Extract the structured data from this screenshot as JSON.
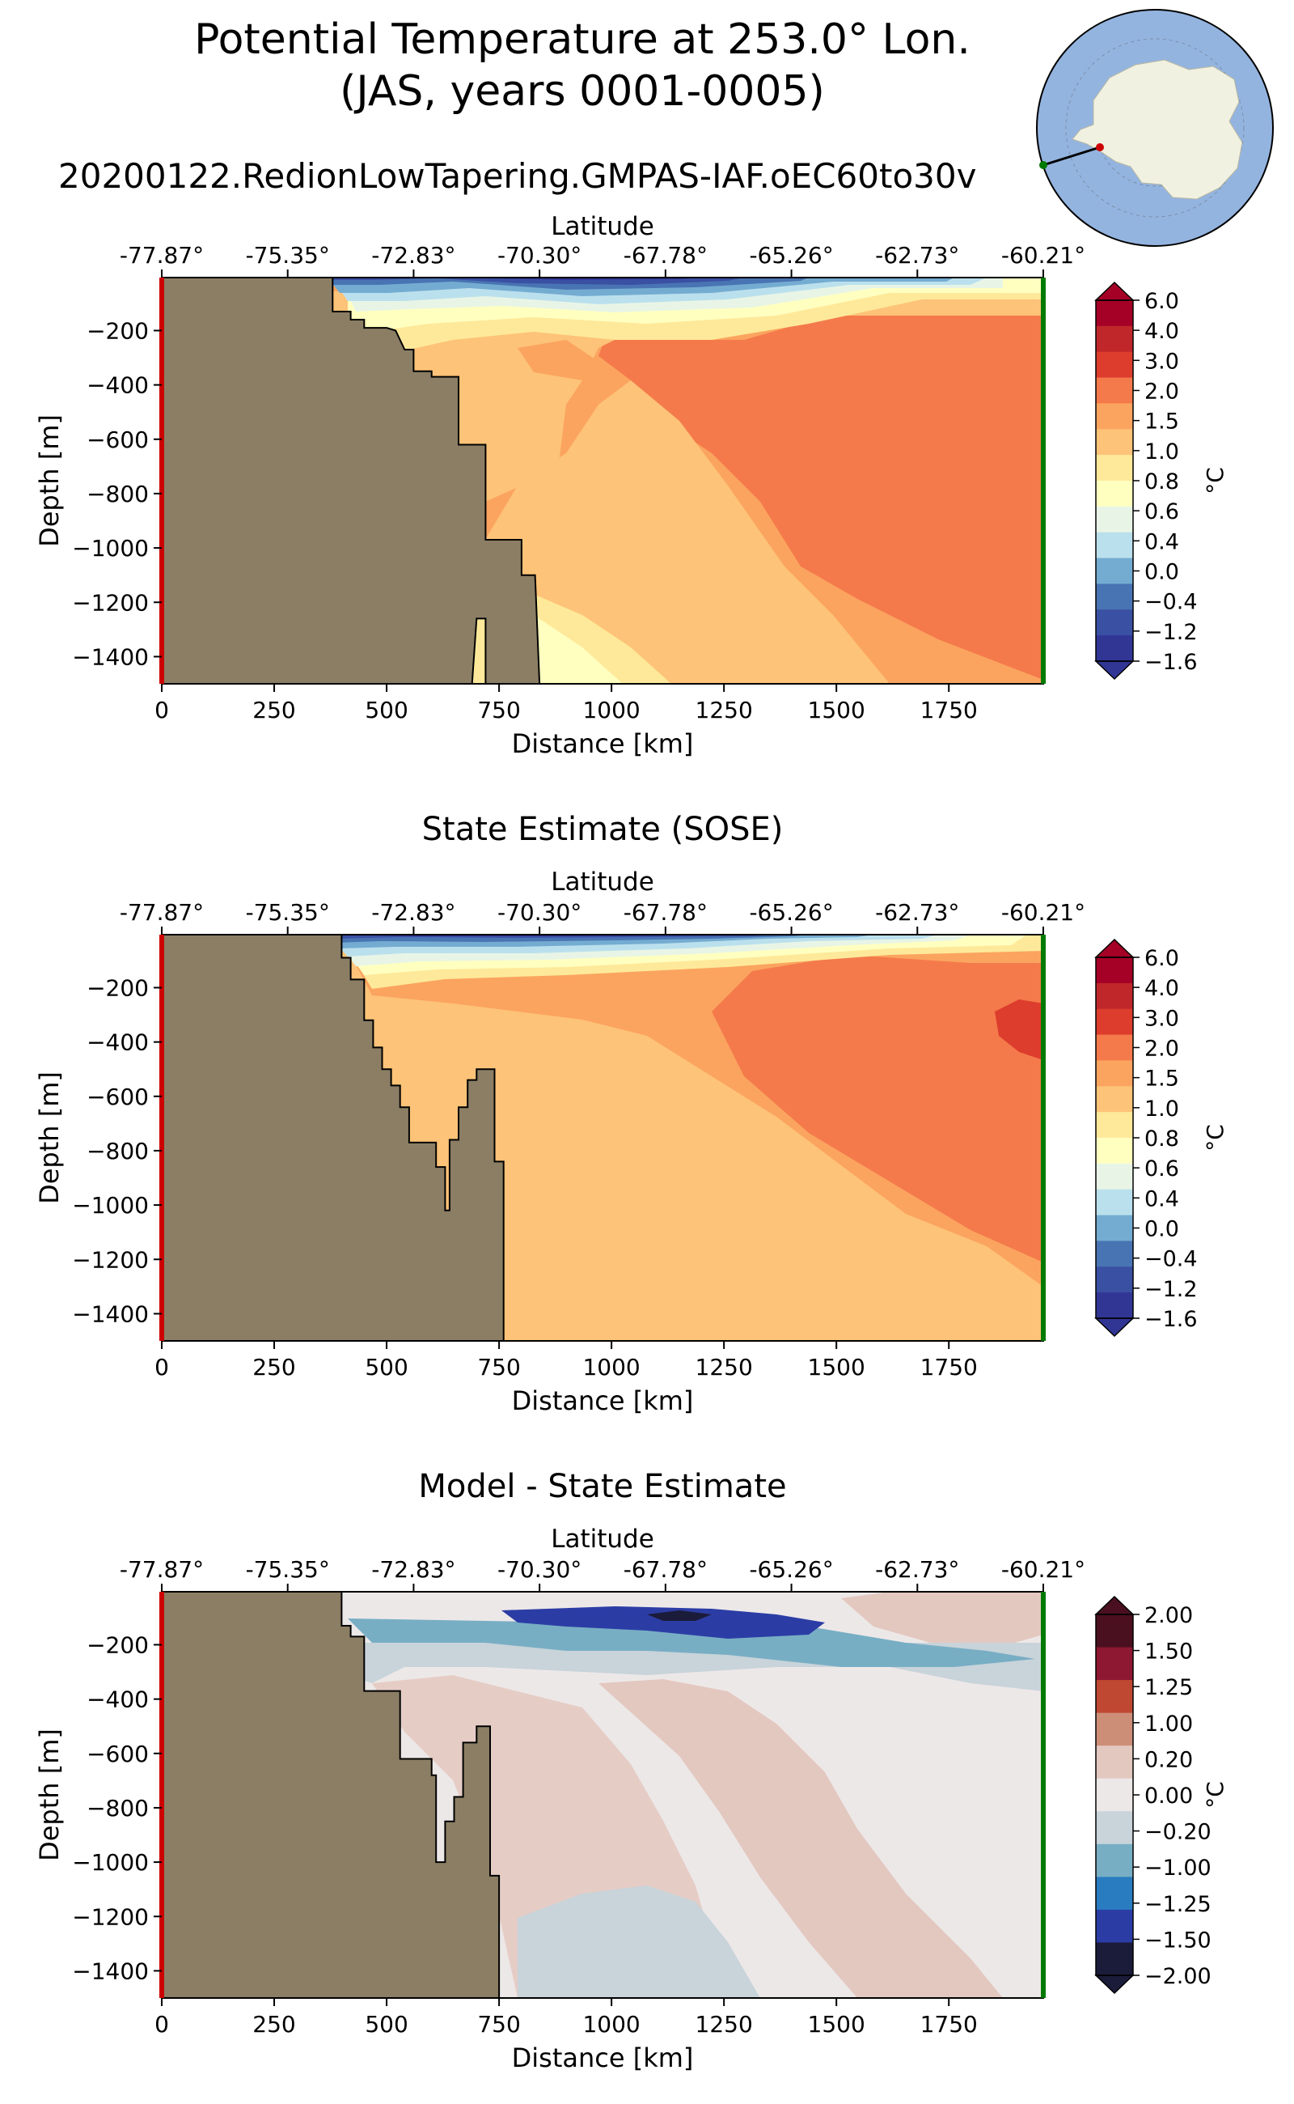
{
  "header": {
    "title_line1": "Potential Temperature at 253.0° Lon.",
    "title_line2": "(JAS, years 0001-0005)",
    "run_name": "20200122.RedionLowTapering.GMPAS-IAF.oEC60to30v"
  },
  "colors": {
    "land": "#8b7e64",
    "start_marker": "#cc0000",
    "end_marker": "#006400",
    "map_ocean": "#94b4e0",
    "map_land": "#f1f1e2",
    "temp_palette": [
      "#313695",
      "#3a50a3",
      "#4974b3",
      "#74acd1",
      "#bbe0ed",
      "#e8f5e6",
      "#ffffc0",
      "#fee99a",
      "#fdc378",
      "#fba45f",
      "#f47a4b",
      "#dd3d2d",
      "#c0272b",
      "#a50026"
    ],
    "diff_palette": [
      "#1b1b3a",
      "#2b3da5",
      "#2a7cc0",
      "#78aec4",
      "#c8d3da",
      "#ede8e8",
      "#e3c8c0",
      "#cd8e78",
      "#bf4832",
      "#8e1831",
      "#4a1020"
    ]
  },
  "chart_data": [
    {
      "type": "heatmap",
      "title": "",
      "xlabel": "Distance [km]",
      "ylabel": "Depth [m]",
      "top_axis_label": "Latitude",
      "xlim": [
        0,
        1960
      ],
      "ylim": [
        -1500,
        -5
      ],
      "x_ticks": [
        "0",
        "250",
        "500",
        "750",
        "1000",
        "1250",
        "1500",
        "1750"
      ],
      "x_tick_values": [
        0,
        250,
        500,
        750,
        1000,
        1250,
        1500,
        1750
      ],
      "y_ticks": [
        "−200",
        "−400",
        "−600",
        "−800",
        "−1000",
        "−1200",
        "−1400"
      ],
      "y_tick_values": [
        -200,
        -400,
        -600,
        -800,
        -1000,
        -1200,
        -1400
      ],
      "lat_ticks": [
        "-77.87°",
        "-75.35°",
        "-72.83°",
        "-70.30°",
        "-67.78°",
        "-65.26°",
        "-62.73°",
        "-60.21°"
      ],
      "lat_tick_distances": [
        0,
        280,
        560,
        840,
        1120,
        1400,
        1680,
        1960
      ],
      "colorbar": {
        "label": "°C",
        "ticks": [
          "6.0",
          "4.0",
          "3.0",
          "2.0",
          "1.5",
          "1.0",
          "0.8",
          "0.6",
          "0.4",
          "0.0",
          "−0.4",
          "−1.2",
          "−1.6"
        ]
      },
      "temperature_levels": [
        -1.6,
        -1.2,
        -0.4,
        0.0,
        0.4,
        0.6,
        0.8,
        1.0,
        1.5,
        2.0,
        3.0,
        4.0,
        6.0
      ],
      "bathymetry": [
        [
          0,
          -5
        ],
        [
          380,
          -5
        ],
        [
          380,
          -130
        ],
        [
          420,
          -130
        ],
        [
          420,
          -160
        ],
        [
          450,
          -160
        ],
        [
          450,
          -190
        ],
        [
          500,
          -190
        ],
        [
          520,
          -200
        ],
        [
          540,
          -270
        ],
        [
          560,
          -270
        ],
        [
          560,
          -350
        ],
        [
          600,
          -350
        ],
        [
          600,
          -370
        ],
        [
          660,
          -370
        ],
        [
          660,
          -620
        ],
        [
          720,
          -620
        ],
        [
          720,
          -970
        ],
        [
          800,
          -970
        ],
        [
          800,
          -1100
        ],
        [
          830,
          -1100
        ],
        [
          840,
          -1500
        ],
        [
          720,
          -1500
        ],
        [
          720,
          -1260
        ],
        [
          700,
          -1260
        ],
        [
          690,
          -1500
        ],
        [
          0,
          -1500
        ]
      ]
    },
    {
      "type": "heatmap",
      "title": "State Estimate (SOSE)",
      "xlabel": "Distance [km]",
      "ylabel": "Depth [m]",
      "top_axis_label": "Latitude",
      "xlim": [
        0,
        1960
      ],
      "ylim": [
        -1500,
        -5
      ],
      "x_ticks": [
        "0",
        "250",
        "500",
        "750",
        "1000",
        "1250",
        "1500",
        "1750"
      ],
      "x_tick_values": [
        0,
        250,
        500,
        750,
        1000,
        1250,
        1500,
        1750
      ],
      "y_ticks": [
        "−200",
        "−400",
        "−600",
        "−800",
        "−1000",
        "−1200",
        "−1400"
      ],
      "y_tick_values": [
        -200,
        -400,
        -600,
        -800,
        -1000,
        -1200,
        -1400
      ],
      "lat_ticks": [
        "-77.87°",
        "-75.35°",
        "-72.83°",
        "-70.30°",
        "-67.78°",
        "-65.26°",
        "-62.73°",
        "-60.21°"
      ],
      "lat_tick_distances": [
        0,
        280,
        560,
        840,
        1120,
        1400,
        1680,
        1960
      ],
      "colorbar": {
        "label": "°C",
        "ticks": [
          "6.0",
          "4.0",
          "3.0",
          "2.0",
          "1.5",
          "1.0",
          "0.8",
          "0.6",
          "0.4",
          "0.0",
          "−0.4",
          "−1.2",
          "−1.6"
        ]
      },
      "temperature_levels": [
        -1.6,
        -1.2,
        -0.4,
        0.0,
        0.4,
        0.6,
        0.8,
        1.0,
        1.5,
        2.0,
        3.0,
        4.0,
        6.0
      ],
      "bathymetry": [
        [
          0,
          -5
        ],
        [
          400,
          -5
        ],
        [
          400,
          -90
        ],
        [
          420,
          -90
        ],
        [
          420,
          -170
        ],
        [
          450,
          -170
        ],
        [
          450,
          -320
        ],
        [
          470,
          -320
        ],
        [
          470,
          -420
        ],
        [
          490,
          -420
        ],
        [
          490,
          -500
        ],
        [
          510,
          -500
        ],
        [
          510,
          -560
        ],
        [
          530,
          -560
        ],
        [
          530,
          -640
        ],
        [
          550,
          -640
        ],
        [
          550,
          -770
        ],
        [
          610,
          -770
        ],
        [
          610,
          -860
        ],
        [
          630,
          -860
        ],
        [
          630,
          -1020
        ],
        [
          640,
          -1020
        ],
        [
          640,
          -760
        ],
        [
          660,
          -760
        ],
        [
          660,
          -640
        ],
        [
          680,
          -640
        ],
        [
          680,
          -540
        ],
        [
          700,
          -540
        ],
        [
          700,
          -500
        ],
        [
          740,
          -500
        ],
        [
          740,
          -840
        ],
        [
          760,
          -840
        ],
        [
          760,
          -1500
        ],
        [
          0,
          -1500
        ]
      ]
    },
    {
      "type": "heatmap",
      "title": "Model - State Estimate",
      "xlabel": "Distance [km]",
      "ylabel": "Depth [m]",
      "top_axis_label": "Latitude",
      "xlim": [
        0,
        1960
      ],
      "ylim": [
        -1500,
        -5
      ],
      "x_ticks": [
        "0",
        "250",
        "500",
        "750",
        "1000",
        "1250",
        "1500",
        "1750"
      ],
      "x_tick_values": [
        0,
        250,
        500,
        750,
        1000,
        1250,
        1500,
        1750
      ],
      "y_ticks": [
        "−200",
        "−400",
        "−600",
        "−800",
        "−1000",
        "−1200",
        "−1400"
      ],
      "y_tick_values": [
        -200,
        -400,
        -600,
        -800,
        -1000,
        -1200,
        -1400
      ],
      "lat_ticks": [
        "-77.87°",
        "-75.35°",
        "-72.83°",
        "-70.30°",
        "-67.78°",
        "-65.26°",
        "-62.73°",
        "-60.21°"
      ],
      "lat_tick_distances": [
        0,
        280,
        560,
        840,
        1120,
        1400,
        1680,
        1960
      ],
      "colorbar": {
        "label": "°C",
        "ticks": [
          "2.00",
          "1.50",
          "1.25",
          "1.00",
          "0.20",
          "0.00",
          "−0.20",
          "−1.00",
          "−1.25",
          "−1.50",
          "−2.00"
        ]
      },
      "difference_levels": [
        -2.0,
        -1.5,
        -1.25,
        -1.0,
        -0.2,
        0.0,
        0.2,
        1.0,
        1.25,
        1.5,
        2.0
      ],
      "bathymetry": [
        [
          0,
          -5
        ],
        [
          400,
          -5
        ],
        [
          400,
          -130
        ],
        [
          420,
          -130
        ],
        [
          420,
          -170
        ],
        [
          450,
          -170
        ],
        [
          450,
          -370
        ],
        [
          530,
          -370
        ],
        [
          530,
          -620
        ],
        [
          600,
          -620
        ],
        [
          600,
          -680
        ],
        [
          610,
          -680
        ],
        [
          610,
          -1000
        ],
        [
          630,
          -1000
        ],
        [
          630,
          -850
        ],
        [
          650,
          -850
        ],
        [
          650,
          -760
        ],
        [
          670,
          -760
        ],
        [
          670,
          -560
        ],
        [
          700,
          -560
        ],
        [
          700,
          -500
        ],
        [
          730,
          -500
        ],
        [
          730,
          -1050
        ],
        [
          750,
          -1050
        ],
        [
          750,
          -1500
        ],
        [
          0,
          -1500
        ]
      ]
    }
  ]
}
